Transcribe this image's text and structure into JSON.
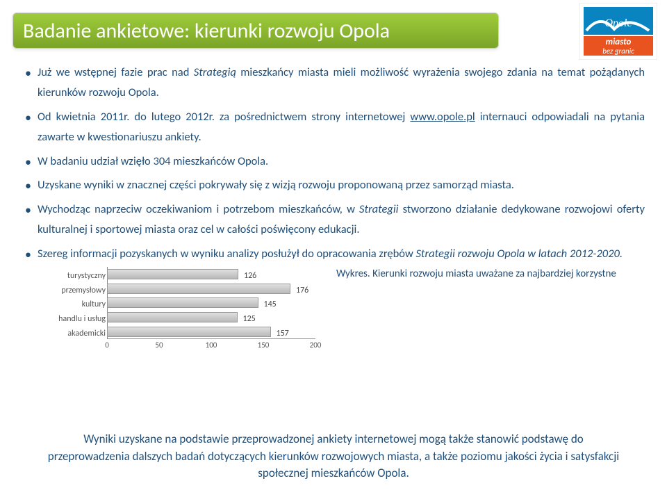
{
  "title": "Badanie ankietowe: kierunki rozwoju Opola",
  "bullets": {
    "b1a": "Już we wstępnej fazie prac nad ",
    "b1b": "Strategią",
    "b1c": " mieszkańcy miasta mieli możliwość wyrażenia swojego zdania na temat pożądanych kierunków rozwoju Opola.",
    "b2a": "Od kwietnia 2011r. do lutego 2012r. za pośrednictwem strony internetowej ",
    "b2link": "www.opole.pl",
    "b2b": " internauci odpowiadali na pytania zawarte  w kwestionariuszu ankiety.",
    "b3": "W badaniu udział wzięło 304 mieszkańców Opola.",
    "b4": "Uzyskane wyniki w znacznej części pokrywały się z wizją rozwoju proponowaną przez samorząd miasta.",
    "b5a": "Wychodząc naprzeciw oczekiwaniom i potrzebom mieszkańców, w ",
    "b5b": "Strategii",
    "b5c": " stworzono działanie dedykowane rozwojowi  oferty kulturalnej i sportowej miasta oraz cel w całości poświęcony edukacji.",
    "b6a": "Szereg informacji pozyskanych w wyniku analizy posłużył do  opracowania zrębów  ",
    "b6b": "Strategii rozwoju Opola w latach 2012-2020."
  },
  "chart": {
    "type": "bar",
    "orientation": "horizontal",
    "categories": [
      "turystyczny",
      "przemysłowy",
      "kultury",
      "handlu i usług",
      "akademicki"
    ],
    "values": [
      126,
      176,
      145,
      125,
      157
    ],
    "xlim": [
      0,
      200
    ],
    "xtick_step": 50,
    "xticks": [
      "0",
      "50",
      "100",
      "150",
      "200"
    ],
    "bar_color": "#c8c8c8",
    "border_color": "#999999",
    "axis_color": "#888888",
    "label_color": "#555555",
    "value_color": "#444444",
    "label_fontsize": 12,
    "tick_fontsize": 11
  },
  "caption": "Wykres. Kierunki rozwoju miasta uważane za najbardziej korzystne",
  "footer": "Wyniki uzyskane na podstawie przeprowadzonej ankiety internetowej mogą także  stanowić podstawę do  przeprowadzenia dalszych badań dotyczących kierunków rozwojowych miasta, a także poziomu jakości życia i satysfakcji społecznej mieszkańców Opola.",
  "logo": {
    "top_text": "Opole",
    "mid_text": "miasto",
    "bottom_text": "bez granic",
    "bg_color": "#0a84c1",
    "accent_color": "#e8531f",
    "text_color": "#ffffff"
  }
}
